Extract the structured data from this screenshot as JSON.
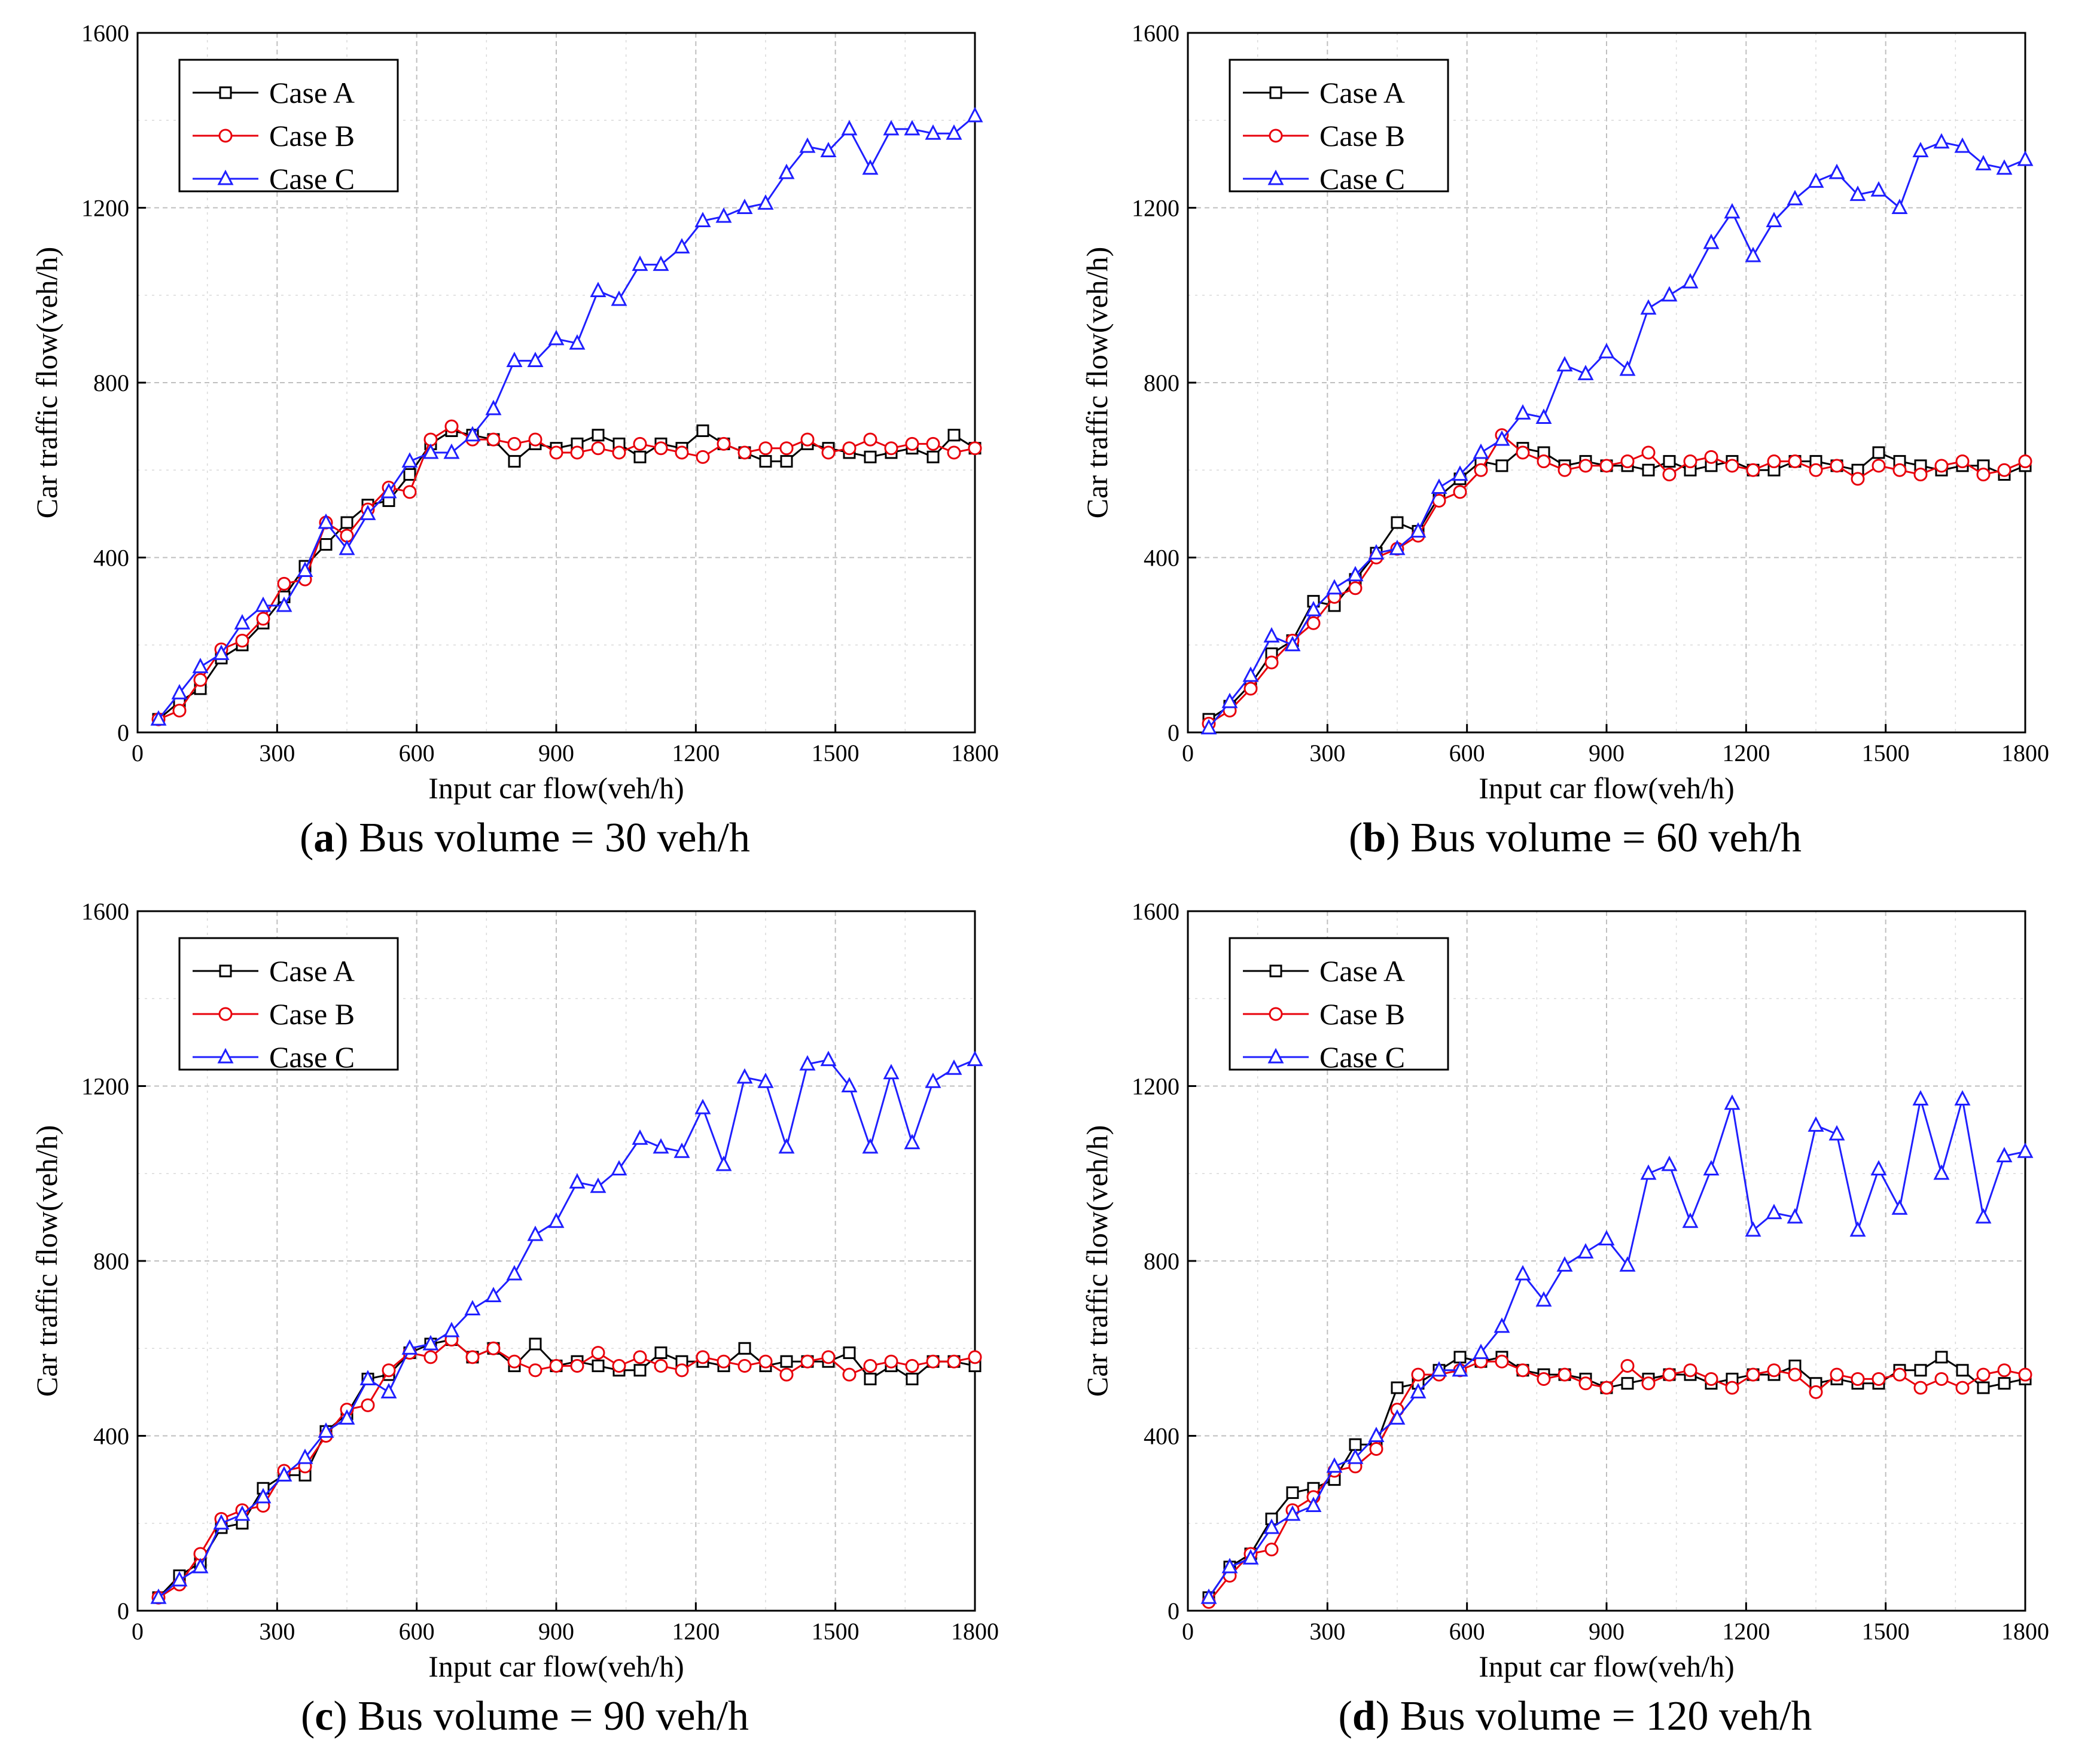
{
  "figure": {
    "shared": {
      "xlabel": "Input car flow(veh/h)",
      "ylabel": "Car traffic flow(veh/h)",
      "xlim": [
        0,
        1800
      ],
      "ylim": [
        0,
        1600
      ],
      "xticks": [
        "0",
        "300",
        "600",
        "900",
        "1200",
        "1500",
        "1800"
      ],
      "yticks": [
        "0",
        "400",
        "800",
        "1200",
        "1600"
      ],
      "legend": [
        "Case A",
        "Case B",
        "Case C"
      ],
      "colors": {
        "Case A": "#000000",
        "Case B": "#e8000b",
        "Case C": "#1f1fff",
        "grid": "#bfbfbf"
      },
      "markers": {
        "Case A": "square",
        "Case B": "circle",
        "Case C": "triangle"
      }
    }
  },
  "chart_data": [
    {
      "type": "line",
      "caption_letter": "a",
      "caption_text": " Bus volume = 30 veh/h",
      "title": "(a) Bus volume = 30 veh/h",
      "xlabel": "Input car flow(veh/h)",
      "ylabel": "Car traffic flow(veh/h)",
      "xlim": [
        0,
        1800
      ],
      "ylim": [
        0,
        1600
      ],
      "grid": true,
      "legend_position": "top-left",
      "x": [
        45,
        90,
        135,
        180,
        225,
        270,
        315,
        360,
        405,
        450,
        495,
        540,
        585,
        630,
        675,
        720,
        765,
        810,
        855,
        900,
        945,
        990,
        1035,
        1080,
        1125,
        1170,
        1215,
        1260,
        1305,
        1350,
        1395,
        1440,
        1485,
        1530,
        1575,
        1620,
        1665,
        1710,
        1755,
        1800
      ],
      "series": [
        {
          "name": "Case A",
          "values": [
            30,
            70,
            100,
            170,
            200,
            250,
            310,
            380,
            430,
            480,
            520,
            530,
            590,
            660,
            690,
            680,
            670,
            620,
            660,
            650,
            660,
            680,
            660,
            630,
            660,
            650,
            690,
            660,
            640,
            620,
            620,
            660,
            650,
            640,
            630,
            640,
            650,
            630,
            680,
            650
          ]
        },
        {
          "name": "Case B",
          "values": [
            30,
            50,
            120,
            190,
            210,
            260,
            340,
            350,
            480,
            450,
            510,
            560,
            550,
            670,
            700,
            670,
            670,
            660,
            670,
            640,
            640,
            650,
            640,
            660,
            650,
            640,
            630,
            660,
            640,
            650,
            650,
            670,
            640,
            650,
            670,
            650,
            660,
            660,
            640,
            650
          ]
        },
        {
          "name": "Case C",
          "values": [
            30,
            90,
            150,
            180,
            250,
            290,
            290,
            370,
            480,
            420,
            500,
            550,
            620,
            640,
            640,
            680,
            740,
            850,
            850,
            900,
            890,
            1010,
            990,
            1070,
            1070,
            1110,
            1170,
            1180,
            1200,
            1210,
            1280,
            1340,
            1330,
            1380,
            1290,
            1380,
            1380,
            1370,
            1370,
            1410
          ]
        }
      ]
    },
    {
      "type": "line",
      "caption_letter": "b",
      "caption_text": " Bus volume = 60 veh/h",
      "title": "(b) Bus volume = 60 veh/h",
      "xlabel": "Input car flow(veh/h)",
      "ylabel": "Car traffic flow(veh/h)",
      "xlim": [
        0,
        1800
      ],
      "ylim": [
        0,
        1600
      ],
      "grid": true,
      "legend_position": "top-left",
      "x": [
        45,
        90,
        135,
        180,
        225,
        270,
        315,
        360,
        405,
        450,
        495,
        540,
        585,
        630,
        675,
        720,
        765,
        810,
        855,
        900,
        945,
        990,
        1035,
        1080,
        1125,
        1170,
        1215,
        1260,
        1305,
        1350,
        1395,
        1440,
        1485,
        1530,
        1575,
        1620,
        1665,
        1710,
        1755,
        1800
      ],
      "series": [
        {
          "name": "Case A",
          "values": [
            30,
            60,
            110,
            180,
            210,
            300,
            290,
            350,
            410,
            480,
            460,
            540,
            580,
            620,
            610,
            650,
            640,
            610,
            620,
            610,
            610,
            600,
            620,
            600,
            610,
            620,
            600,
            600,
            620,
            620,
            610,
            600,
            640,
            620,
            610,
            600,
            610,
            610,
            590,
            610
          ]
        },
        {
          "name": "Case B",
          "values": [
            20,
            50,
            100,
            160,
            210,
            250,
            310,
            330,
            400,
            420,
            450,
            530,
            550,
            600,
            680,
            640,
            620,
            600,
            610,
            610,
            620,
            640,
            590,
            620,
            630,
            610,
            600,
            620,
            620,
            600,
            610,
            580,
            610,
            600,
            590,
            610,
            620,
            590,
            600,
            620
          ]
        },
        {
          "name": "Case C",
          "values": [
            10,
            70,
            130,
            220,
            200,
            280,
            330,
            360,
            410,
            420,
            460,
            560,
            590,
            640,
            670,
            730,
            720,
            840,
            820,
            870,
            830,
            970,
            1000,
            1030,
            1120,
            1190,
            1090,
            1170,
            1220,
            1260,
            1280,
            1230,
            1240,
            1200,
            1330,
            1350,
            1340,
            1300,
            1290,
            1310
          ]
        }
      ]
    },
    {
      "type": "line",
      "caption_letter": "c",
      "caption_text": " Bus volume = 90 veh/h",
      "title": "(c) Bus volume = 90 veh/h",
      "xlabel": "Input car flow(veh/h)",
      "ylabel": "Car traffic flow(veh/h)",
      "xlim": [
        0,
        1800
      ],
      "ylim": [
        0,
        1600
      ],
      "grid": true,
      "legend_position": "top-left",
      "x": [
        45,
        90,
        135,
        180,
        225,
        270,
        315,
        360,
        405,
        450,
        495,
        540,
        585,
        630,
        675,
        720,
        765,
        810,
        855,
        900,
        945,
        990,
        1035,
        1080,
        1125,
        1170,
        1215,
        1260,
        1305,
        1350,
        1395,
        1440,
        1485,
        1530,
        1575,
        1620,
        1665,
        1710,
        1755,
        1800
      ],
      "series": [
        {
          "name": "Case A",
          "values": [
            30,
            80,
            110,
            190,
            200,
            280,
            310,
            310,
            410,
            450,
            530,
            540,
            590,
            610,
            620,
            580,
            600,
            560,
            610,
            560,
            570,
            560,
            550,
            550,
            590,
            570,
            570,
            560,
            600,
            560,
            570,
            570,
            570,
            590,
            530,
            560,
            530,
            570,
            570,
            560
          ]
        },
        {
          "name": "Case B",
          "values": [
            30,
            60,
            130,
            210,
            230,
            240,
            320,
            330,
            400,
            460,
            470,
            550,
            590,
            580,
            620,
            580,
            600,
            570,
            550,
            560,
            560,
            590,
            560,
            580,
            560,
            550,
            580,
            570,
            560,
            570,
            540,
            570,
            580,
            540,
            560,
            570,
            560,
            570,
            570,
            580
          ]
        },
        {
          "name": "Case C",
          "values": [
            30,
            70,
            100,
            200,
            220,
            260,
            310,
            350,
            410,
            440,
            530,
            500,
            600,
            610,
            640,
            690,
            720,
            770,
            860,
            890,
            980,
            970,
            1010,
            1080,
            1060,
            1050,
            1150,
            1020,
            1220,
            1210,
            1060,
            1250,
            1260,
            1200,
            1060,
            1230,
            1070,
            1210,
            1240,
            1260
          ]
        }
      ]
    },
    {
      "type": "line",
      "caption_letter": "d",
      "caption_text": " Bus volume = 120 veh/h",
      "title": "(d) Bus volume = 120 veh/h",
      "xlabel": "Input car flow(veh/h)",
      "ylabel": "Car traffic flow(veh/h)",
      "xlim": [
        0,
        1800
      ],
      "ylim": [
        0,
        1600
      ],
      "grid": true,
      "legend_position": "top-left",
      "x": [
        45,
        90,
        135,
        180,
        225,
        270,
        315,
        360,
        405,
        450,
        495,
        540,
        585,
        630,
        675,
        720,
        765,
        810,
        855,
        900,
        945,
        990,
        1035,
        1080,
        1125,
        1170,
        1215,
        1260,
        1305,
        1350,
        1395,
        1440,
        1485,
        1530,
        1575,
        1620,
        1665,
        1710,
        1755,
        1800
      ],
      "series": [
        {
          "name": "Case A",
          "values": [
            30,
            100,
            130,
            210,
            270,
            280,
            300,
            380,
            380,
            510,
            520,
            550,
            580,
            570,
            580,
            550,
            540,
            540,
            530,
            510,
            520,
            530,
            540,
            540,
            520,
            530,
            540,
            540,
            560,
            520,
            530,
            520,
            520,
            550,
            550,
            580,
            550,
            510,
            520,
            530
          ]
        },
        {
          "name": "Case B",
          "values": [
            20,
            80,
            130,
            140,
            230,
            260,
            320,
            330,
            370,
            460,
            540,
            540,
            550,
            570,
            570,
            550,
            530,
            540,
            520,
            510,
            560,
            520,
            540,
            550,
            530,
            510,
            540,
            550,
            540,
            500,
            540,
            530,
            530,
            540,
            510,
            530,
            510,
            540,
            550,
            540
          ]
        },
        {
          "name": "Case C",
          "values": [
            30,
            100,
            120,
            190,
            220,
            240,
            330,
            350,
            400,
            440,
            500,
            550,
            550,
            590,
            650,
            770,
            710,
            790,
            820,
            850,
            790,
            1000,
            1020,
            890,
            1010,
            1160,
            870,
            910,
            900,
            1110,
            1090,
            870,
            1010,
            920,
            1170,
            1000,
            1170,
            900,
            1040,
            1050
          ]
        }
      ]
    }
  ]
}
